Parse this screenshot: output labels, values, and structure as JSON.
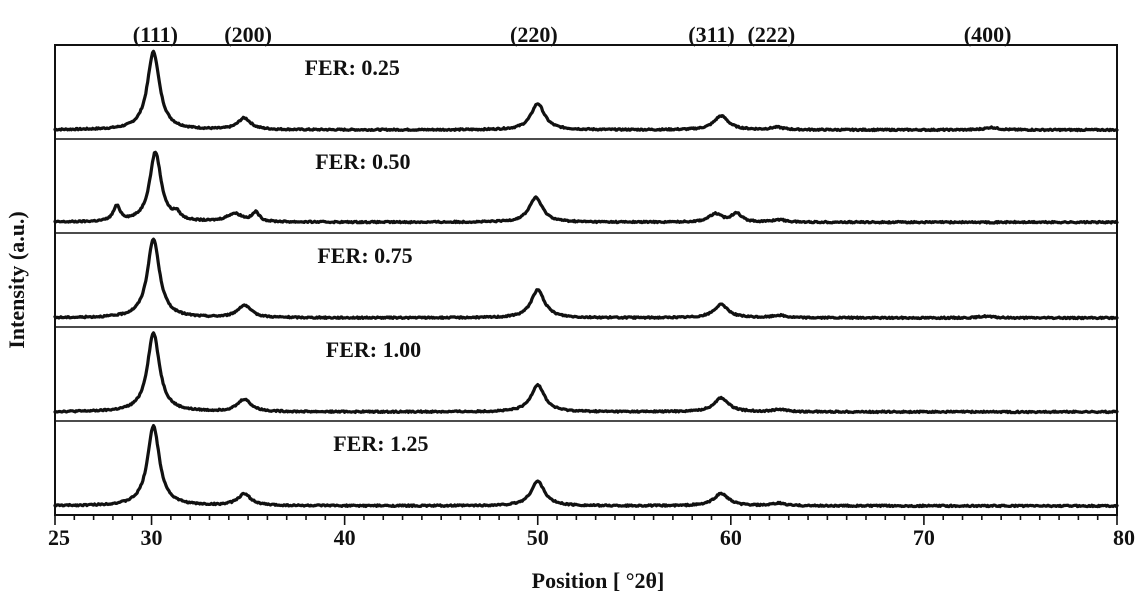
{
  "chart_data": {
    "type": "line",
    "xlabel": "Position [  °2θ]",
    "ylabel": "Intensity (a.u.)",
    "xlim": [
      25,
      80
    ],
    "x_ticks": [
      25,
      30,
      40,
      50,
      60,
      70,
      80
    ],
    "peak_labels": [
      {
        "label": "(111)",
        "x": 30.2
      },
      {
        "label": "(200)",
        "x": 35.0
      },
      {
        "label": "(220)",
        "x": 49.8
      },
      {
        "label": "(311)",
        "x": 59.0
      },
      {
        "label": "(222)",
        "x": 62.1
      },
      {
        "label": "(400)",
        "x": 73.3
      }
    ],
    "series": [
      {
        "name": "FER: 0.25",
        "baseline": 0.05,
        "peaks": [
          {
            "x": 30.1,
            "height": 0.95,
            "width": 0.38
          },
          {
            "x": 34.8,
            "height": 0.14,
            "width": 0.4
          },
          {
            "x": 50.0,
            "height": 0.32,
            "width": 0.42
          },
          {
            "x": 59.5,
            "height": 0.17,
            "width": 0.45
          },
          {
            "x": 62.4,
            "height": 0.03,
            "width": 0.4
          },
          {
            "x": 73.5,
            "height": 0.03,
            "width": 0.4
          }
        ]
      },
      {
        "name": "FER: 0.50",
        "baseline": 0.07,
        "peaks": [
          {
            "x": 28.2,
            "height": 0.18,
            "width": 0.22
          },
          {
            "x": 30.2,
            "height": 0.85,
            "width": 0.36
          },
          {
            "x": 31.3,
            "height": 0.08,
            "width": 0.22
          },
          {
            "x": 34.3,
            "height": 0.1,
            "width": 0.5
          },
          {
            "x": 35.4,
            "height": 0.11,
            "width": 0.22
          },
          {
            "x": 49.9,
            "height": 0.3,
            "width": 0.42
          },
          {
            "x": 59.2,
            "height": 0.1,
            "width": 0.4
          },
          {
            "x": 60.3,
            "height": 0.11,
            "width": 0.3
          },
          {
            "x": 62.5,
            "height": 0.03,
            "width": 0.4
          }
        ]
      },
      {
        "name": "FER: 0.75",
        "baseline": 0.05,
        "peaks": [
          {
            "x": 30.1,
            "height": 0.96,
            "width": 0.38
          },
          {
            "x": 34.8,
            "height": 0.15,
            "width": 0.42
          },
          {
            "x": 50.0,
            "height": 0.34,
            "width": 0.42
          },
          {
            "x": 59.5,
            "height": 0.16,
            "width": 0.45
          },
          {
            "x": 62.5,
            "height": 0.03,
            "width": 0.4
          },
          {
            "x": 73.2,
            "height": 0.02,
            "width": 0.4
          }
        ]
      },
      {
        "name": "FER: 1.00",
        "baseline": 0.05,
        "peaks": [
          {
            "x": 30.1,
            "height": 0.96,
            "width": 0.38
          },
          {
            "x": 34.8,
            "height": 0.15,
            "width": 0.42
          },
          {
            "x": 50.0,
            "height": 0.33,
            "width": 0.42
          },
          {
            "x": 59.5,
            "height": 0.17,
            "width": 0.45
          },
          {
            "x": 62.5,
            "height": 0.03,
            "width": 0.4
          }
        ]
      },
      {
        "name": "FER: 1.25",
        "baseline": 0.05,
        "peaks": [
          {
            "x": 30.1,
            "height": 0.97,
            "width": 0.38
          },
          {
            "x": 34.8,
            "height": 0.14,
            "width": 0.42
          },
          {
            "x": 50.0,
            "height": 0.3,
            "width": 0.42
          },
          {
            "x": 59.5,
            "height": 0.15,
            "width": 0.45
          },
          {
            "x": 62.5,
            "height": 0.03,
            "width": 0.4
          }
        ]
      }
    ]
  }
}
